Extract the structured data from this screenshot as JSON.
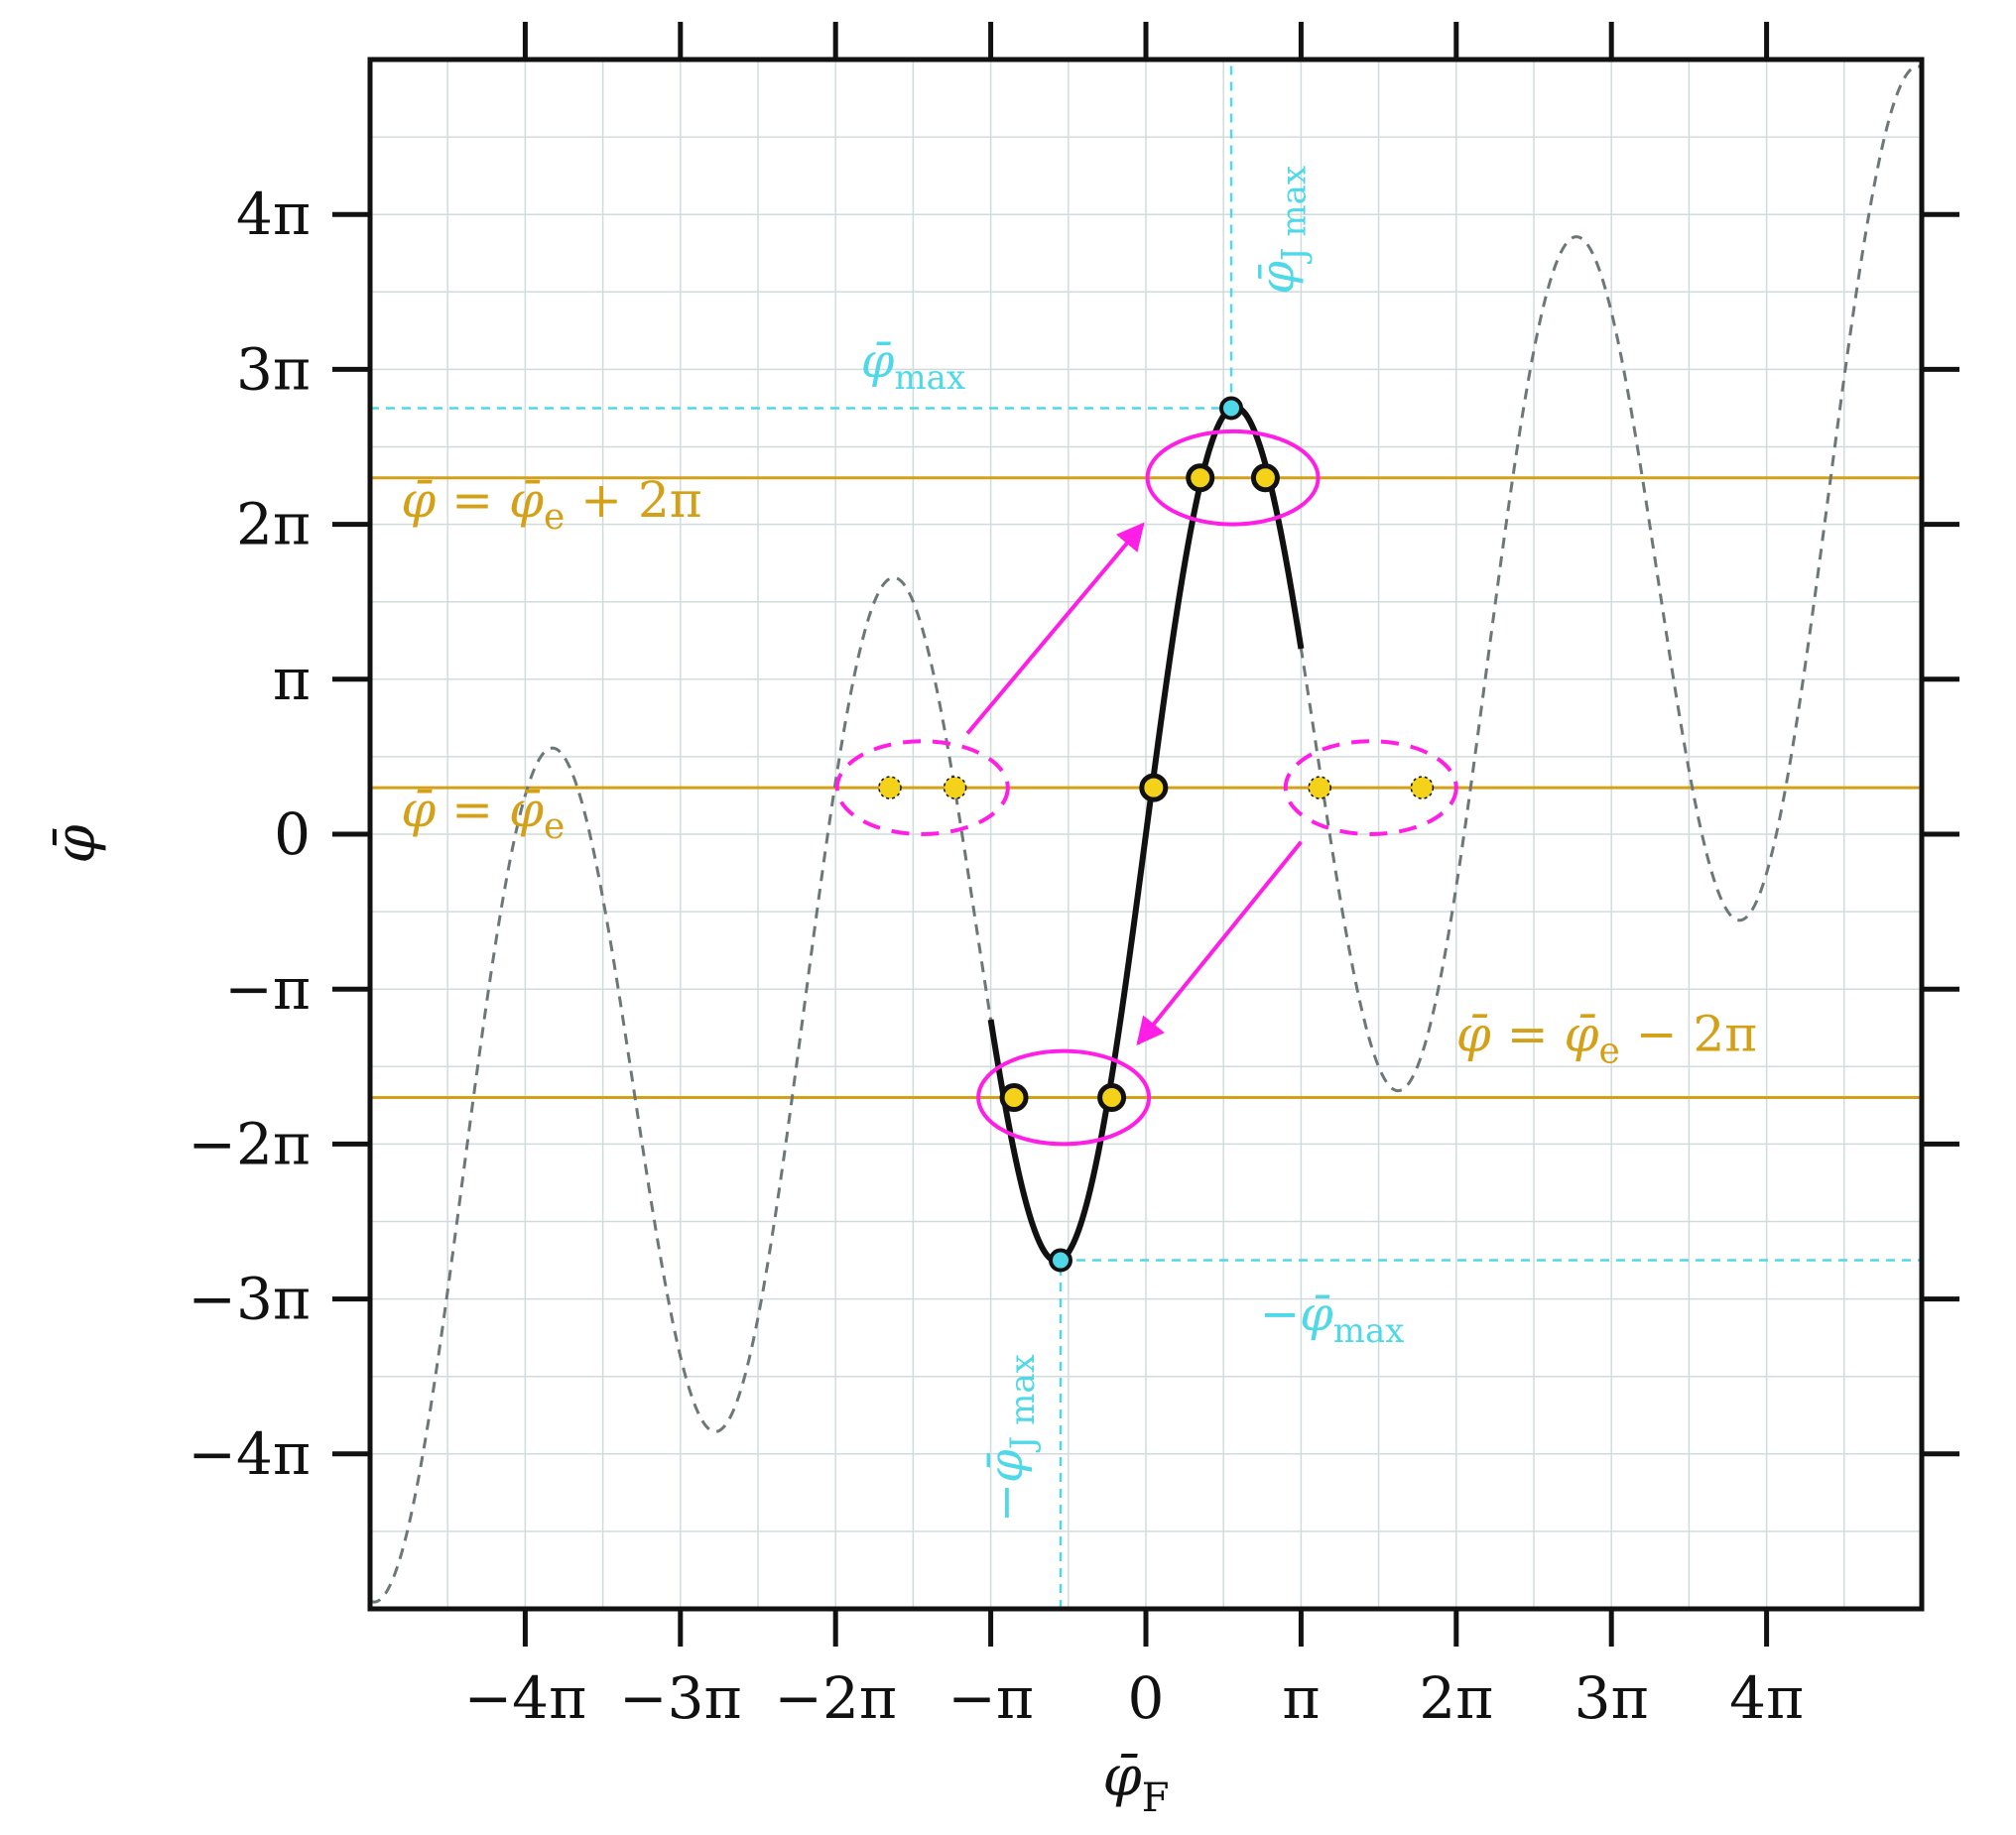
{
  "chart_data": {
    "type": "line",
    "x_unit": "pi",
    "y_unit": "pi",
    "xlim": [
      -5,
      5
    ],
    "ylim": [
      -5,
      5
    ],
    "grid": true,
    "xlabel": {
      "sym": "φ̄",
      "sub": "F"
    },
    "ylabel": {
      "sym": "φ̄",
      "sub": ""
    },
    "x_ticks": [
      {
        "v": -4,
        "label": "−4π"
      },
      {
        "v": -3,
        "label": "−3π"
      },
      {
        "v": -2,
        "label": "−2π"
      },
      {
        "v": -1,
        "label": "−π"
      },
      {
        "v": 0,
        "label": "0"
      },
      {
        "v": 1,
        "label": "π"
      },
      {
        "v": 2,
        "label": "2π"
      },
      {
        "v": 3,
        "label": "3π"
      },
      {
        "v": 4,
        "label": "4π"
      }
    ],
    "y_ticks": [
      {
        "v": -4,
        "label": "−4π"
      },
      {
        "v": -3,
        "label": "−3π"
      },
      {
        "v": -2,
        "label": "−2π"
      },
      {
        "v": -1,
        "label": "−π"
      },
      {
        "v": 0,
        "label": "0"
      },
      {
        "v": 1,
        "label": "π"
      },
      {
        "v": 2,
        "label": "2π"
      },
      {
        "v": 3,
        "label": "3π"
      },
      {
        "v": 4,
        "label": "4π"
      }
    ],
    "curve_params": {
      "phi_max": 2.75,
      "shift": 0.5
    },
    "series": [
      {
        "style": "dashed",
        "color": "#6d7778",
        "range": [
          -5,
          5
        ]
      },
      {
        "style": "solid",
        "color": "#111111",
        "range": [
          -1,
          1
        ]
      }
    ],
    "hlines": [
      {
        "y": 2.3,
        "color": "#d4a017",
        "label": {
          "main": "φ̄ = φ̄",
          "sub": "e",
          "tail": " + 2π"
        },
        "label_x": -4.8,
        "label_y": 2.05
      },
      {
        "y": 0.3,
        "color": "#d4a017",
        "label": {
          "main": "φ̄ = φ̄",
          "sub": "e",
          "tail": ""
        },
        "label_x": -4.8,
        "label_y": 0.05
      },
      {
        "y": -1.7,
        "color": "#d4a017",
        "label": {
          "main": "φ̄ = φ̄",
          "sub": "e",
          "tail": " − 2π"
        },
        "label_x": 2.0,
        "label_y": -1.4
      }
    ],
    "cyan_color": "#4fd8e8",
    "cyan_refs": [
      {
        "kind": "h",
        "y": 2.75,
        "x_from": -5,
        "x_to": 0.55
      },
      {
        "kind": "v",
        "x": 0.55,
        "y_from": 2.75,
        "y_to": 5
      },
      {
        "kind": "h",
        "y": -2.75,
        "x_from": -0.55,
        "x_to": 5
      },
      {
        "kind": "v",
        "x": -0.55,
        "y_from": -5,
        "y_to": -2.75
      }
    ],
    "cyan_labels": [
      {
        "text": "φ̄",
        "sub": "max",
        "x": -1.5,
        "y": 2.95,
        "rotate": false
      },
      {
        "text": "φ̄",
        "sub": "J max",
        "x": 0.95,
        "y": 3.9,
        "rotate": true
      },
      {
        "text": "−φ̄",
        "sub": "max",
        "x": 1.2,
        "y": -3.2,
        "rotate": false
      },
      {
        "text": "−φ̄",
        "sub": "J max",
        "x": -0.8,
        "y": -3.9,
        "rotate": true
      }
    ],
    "extrema_points": [
      {
        "x": 0.55,
        "y": 2.75
      },
      {
        "x": -0.55,
        "y": -2.75
      }
    ],
    "solution_points": [
      {
        "x": 0.35,
        "y": 2.3,
        "primary": true
      },
      {
        "x": 0.77,
        "y": 2.3,
        "primary": true
      },
      {
        "x": 0.05,
        "y": 0.3,
        "primary": true
      },
      {
        "x": -0.85,
        "y": -1.7,
        "primary": true
      },
      {
        "x": -0.22,
        "y": -1.7,
        "primary": true
      },
      {
        "x": -1.65,
        "y": 0.3,
        "primary": false
      },
      {
        "x": -1.23,
        "y": 0.3,
        "primary": false
      },
      {
        "x": 1.12,
        "y": 0.3,
        "primary": false
      },
      {
        "x": 1.78,
        "y": 0.3,
        "primary": false
      }
    ],
    "ellipses": [
      {
        "cx": 0.56,
        "cy": 2.3,
        "rx": 0.55,
        "ry": 0.3,
        "dashed": false
      },
      {
        "cx": -0.53,
        "cy": -1.7,
        "rx": 0.55,
        "ry": 0.3,
        "dashed": false
      },
      {
        "cx": -1.44,
        "cy": 0.3,
        "rx": 0.55,
        "ry": 0.3,
        "dashed": true
      },
      {
        "cx": 1.45,
        "cy": 0.3,
        "rx": 0.55,
        "ry": 0.3,
        "dashed": true
      }
    ],
    "arrows": [
      {
        "from": [
          -1.15,
          0.65
        ],
        "to": [
          -0.02,
          2.0
        ]
      },
      {
        "from": [
          1.0,
          -0.05
        ],
        "to": [
          -0.05,
          -1.35
        ]
      }
    ],
    "magenta_color": "#ff1ee6",
    "point_fill": "#f5d21a"
  }
}
